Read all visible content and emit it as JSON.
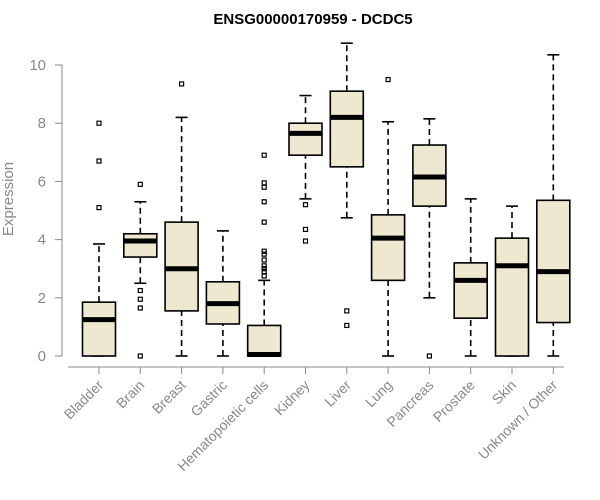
{
  "chart_data": {
    "type": "box",
    "title": "ENSG00000170959 - DCDC5",
    "xlabel": "",
    "ylabel": "Expression",
    "ylim": [
      0,
      10.8
    ],
    "yticks": [
      0,
      2,
      4,
      6,
      8,
      10
    ],
    "categories": [
      "Bladder",
      "Brain",
      "Breast",
      "Gastric",
      "Hematopoietic cells",
      "Kidney",
      "Liver",
      "Lung",
      "Pancreas",
      "Prostate",
      "Skin",
      "Unknown / Other"
    ],
    "boxes": [
      {
        "min": 0,
        "q1": 0,
        "median": 1.25,
        "q3": 1.85,
        "max": 3.85,
        "outliers": [
          5.1,
          6.7,
          8.0
        ]
      },
      {
        "min": 2.5,
        "q1": 3.4,
        "median": 3.95,
        "q3": 4.2,
        "max": 5.3,
        "outliers": [
          0,
          1.65,
          1.95,
          2.25,
          5.9
        ]
      },
      {
        "min": 0,
        "q1": 1.55,
        "median": 3.0,
        "q3": 4.6,
        "max": 8.2,
        "outliers": [
          9.35
        ]
      },
      {
        "min": 0,
        "q1": 1.1,
        "median": 1.8,
        "q3": 2.55,
        "max": 4.3,
        "outliers": []
      },
      {
        "min": 0,
        "q1": 0,
        "median": 0.05,
        "q3": 1.05,
        "max": 2.6,
        "outliers": [
          2.75,
          2.9,
          3.0,
          3.1,
          3.3,
          3.5,
          3.6,
          4.6,
          5.3,
          5.8,
          5.95,
          6.9
        ]
      },
      {
        "min": 5.4,
        "q1": 6.9,
        "median": 7.65,
        "q3": 8.0,
        "max": 8.95,
        "outliers": [
          3.95,
          4.35,
          5.2
        ]
      },
      {
        "min": 4.75,
        "q1": 6.5,
        "median": 8.2,
        "q3": 9.1,
        "max": 10.75,
        "outliers": [
          1.05,
          1.55
        ]
      },
      {
        "min": 0,
        "q1": 2.6,
        "median": 4.05,
        "q3": 4.85,
        "max": 8.05,
        "outliers": [
          9.5
        ]
      },
      {
        "min": 2.0,
        "q1": 5.15,
        "median": 6.15,
        "q3": 7.25,
        "max": 8.15,
        "outliers": [
          0
        ]
      },
      {
        "min": 0,
        "q1": 1.3,
        "median": 2.6,
        "q3": 3.2,
        "max": 5.4,
        "outliers": []
      },
      {
        "min": 0,
        "q1": 0,
        "median": 3.1,
        "q3": 4.05,
        "max": 5.15,
        "outliers": []
      },
      {
        "min": 0,
        "q1": 1.15,
        "median": 2.9,
        "q3": 5.35,
        "max": 10.35,
        "outliers": []
      }
    ],
    "box_fill": "#efe8d0",
    "grid": false,
    "legend": "none"
  }
}
